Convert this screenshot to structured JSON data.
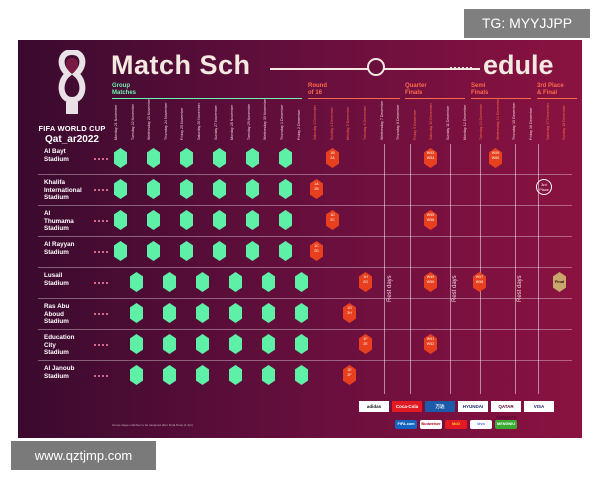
{
  "watermarks": {
    "tg": "TG: MYYJJPP",
    "site": "www.qztjmp.com"
  },
  "logo": {
    "line1": "FIFA WORLD CUP",
    "line2": "Qat_ar2022"
  },
  "title": {
    "left": "Match Sch",
    "right": "edule"
  },
  "stages": {
    "group": "Group\nMatches",
    "r16": "Round\nof 16",
    "qf": "Quarter\nFinals",
    "sf": "Semi\nFinals",
    "final": "3rd Place\n& Final"
  },
  "dates": [
    "Monday 21 November",
    "Tuesday 22 November",
    "Wednesday 23 November",
    "Thursday 24 November",
    "Friday 25 November",
    "Saturday 26 November",
    "Sunday 27 November",
    "Monday 28 November",
    "Tuesday 29 November",
    "Wednesday 30 November",
    "Thursday 1 December",
    "Friday 2 December",
    "Saturday 3 December",
    "Sunday 4 December",
    "Monday 5 December",
    "Tuesday 6 December",
    "Wednesday 7 December",
    "Thursday 8 December",
    "Friday 9 December",
    "Saturday 10 December",
    "Sunday 11 December",
    "Monday 12 December",
    "Tuesday 13 December",
    "Wednesday 14 December",
    "Thursday 15 December",
    "Friday 16 December",
    "Saturday 17 December",
    "Sunday 18 December"
  ],
  "stadiums": [
    "Al Bayt\nStadium",
    "Khalifa\nInternational\nStadium",
    "Al\nThumama\nStadium",
    "Al Rayyan\nStadium",
    "Lusail\nStadium",
    "Ras Abu\nAboud\nStadium",
    "Education\nCity\nStadium",
    "Al Janoub\nStadium"
  ],
  "knockout": {
    "r16": [
      "1B\n2A",
      "1A\n2B",
      "1D\n2C",
      "1C\n2D",
      "1H\n2G",
      "1G\n2H",
      "1F\n2E",
      "1E\n2F"
    ],
    "qf": [
      "W53\nW54",
      "W49\nW50",
      "W55\nW56",
      "W51\nW52"
    ],
    "sf": [
      "W59\nW60",
      "W57\nW58"
    ],
    "third": "3rd\nPlace",
    "final": "Final"
  },
  "rest_label": "Rest days",
  "footer": {
    "group_note": "Group stage matches to be assigned after Final Draw (1 Apr)",
    "sponsors_top": [
      "adidas",
      "Coca-Cola",
      "万达",
      "HYUNDAI",
      "QATAR AIRWAYS",
      "VISA"
    ],
    "sponsors_bottom": [
      "FIFA.com",
      "Budweiser",
      "McD",
      "vivo",
      "MENGNIU"
    ]
  }
}
